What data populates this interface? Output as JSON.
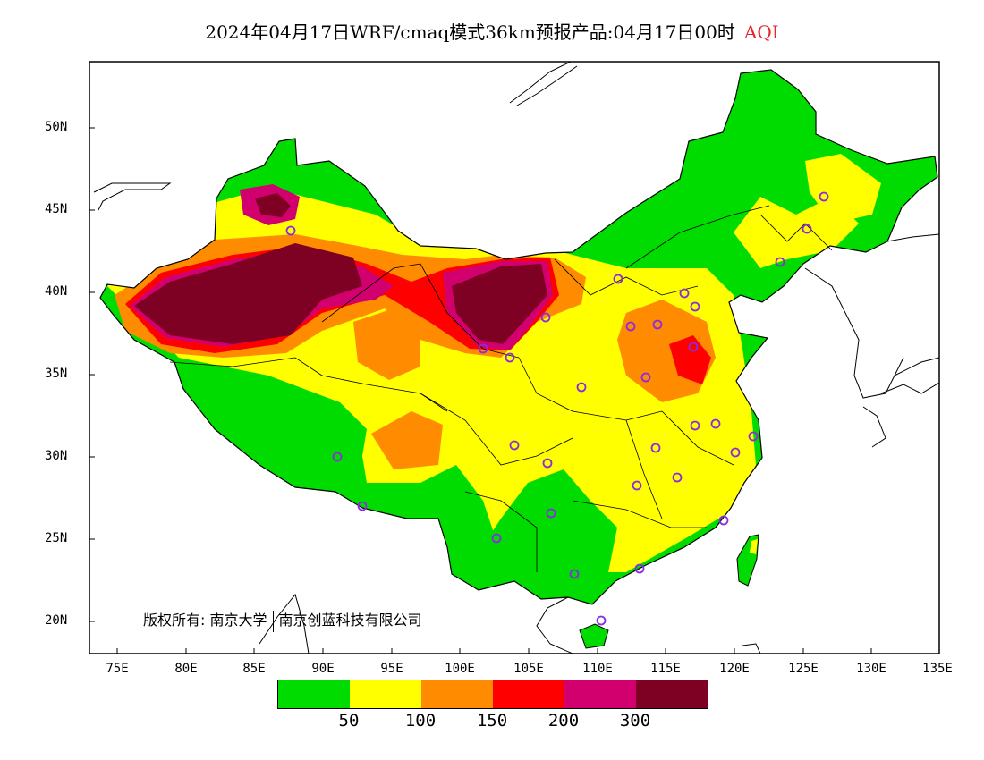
{
  "title": {
    "main": "2024年04月17日WRF/cmaq模式36km预报产品:04月17日00时",
    "variable": "AQI",
    "variable_color": "#e8242a"
  },
  "axes": {
    "y_ticks": [
      "50N",
      "45N",
      "40N",
      "35N",
      "30N",
      "25N",
      "20N"
    ],
    "x_ticks": [
      "75E",
      "80E",
      "85E",
      "90E",
      "95E",
      "100E",
      "105E",
      "110E",
      "115E",
      "120E",
      "125E",
      "130E",
      "135E"
    ],
    "lon_range": [
      73,
      135
    ],
    "lat_range": [
      18,
      54
    ]
  },
  "copyright": {
    "label": "版权所有:",
    "org1": "南京大学",
    "org2": "南京创蓝科技有限公司"
  },
  "legend": {
    "colors": [
      "#00dc00",
      "#ffff00",
      "#ff8c00",
      "#ff0000",
      "#d2006e",
      "#7e0023"
    ],
    "labels": [
      "50",
      "100",
      "150",
      "200",
      "300"
    ]
  },
  "colors": {
    "good": "#00dc00",
    "moderate": "#ffff00",
    "sensitive": "#ff8c00",
    "unhealthy": "#ff0000",
    "very_unhealthy": "#d2006e",
    "hazardous": "#7e0023",
    "station_marker": "#8a2be2"
  }
}
